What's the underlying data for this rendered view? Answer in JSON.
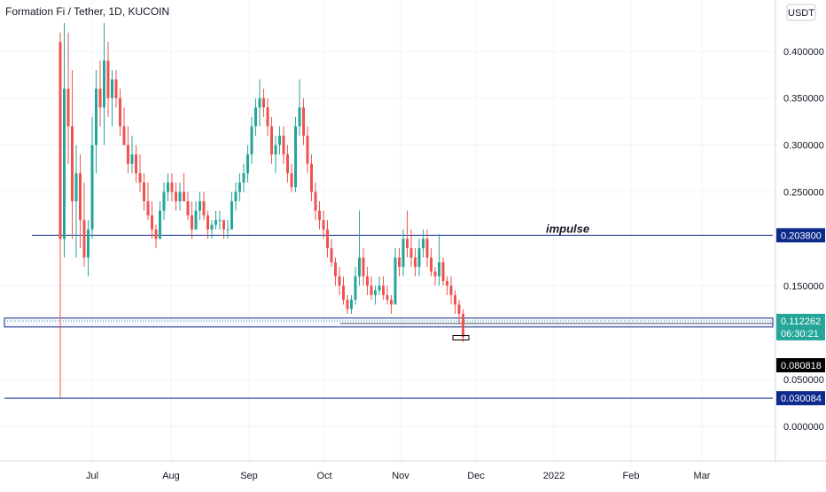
{
  "chart_data": {
    "type": "candlestick",
    "title": "Formation Fi / Tether, 1D, KUCOIN",
    "currency": "USDT",
    "colors": {
      "up": "#26a69a",
      "down": "#ef5350",
      "line": "#0d2a8c",
      "grid": "#f0f3fa"
    },
    "x_ticks": [
      "Jul",
      "Aug",
      "Sep",
      "Oct",
      "Nov",
      "Dec",
      "2022",
      "Feb",
      "Mar"
    ],
    "y_ticks": [
      "0.400000",
      "0.350000",
      "0.300000",
      "0.250000",
      "0.150000",
      "0.050000",
      "0.000000"
    ],
    "ylim": [
      -0.02,
      0.42
    ],
    "horizontal_levels": [
      {
        "price": 0.2038,
        "label": "0.203800",
        "color": "#0d2a8c",
        "annotation": "impulse"
      },
      {
        "price": 0.030084,
        "label": "0.030084",
        "color": "#0d2a8c"
      },
      {
        "price": 0.109778,
        "label": "0.109778",
        "color": "#000000"
      }
    ],
    "price_badges": [
      {
        "label": "0.112262",
        "sublabel": "06:30:21",
        "color": "#26a69a"
      },
      {
        "label": "0.080818",
        "color": "#000000"
      }
    ],
    "candles": [
      [
        0.41,
        0.42,
        0.03,
        0.2
      ],
      [
        0.2,
        0.43,
        0.18,
        0.36
      ],
      [
        0.36,
        0.42,
        0.28,
        0.32
      ],
      [
        0.32,
        0.38,
        0.2,
        0.24
      ],
      [
        0.24,
        0.3,
        0.18,
        0.27
      ],
      [
        0.27,
        0.29,
        0.19,
        0.22
      ],
      [
        0.22,
        0.26,
        0.17,
        0.18
      ],
      [
        0.18,
        0.22,
        0.16,
        0.21
      ],
      [
        0.21,
        0.33,
        0.2,
        0.3
      ],
      [
        0.3,
        0.38,
        0.27,
        0.36
      ],
      [
        0.36,
        0.39,
        0.32,
        0.34
      ],
      [
        0.34,
        0.43,
        0.3,
        0.39
      ],
      [
        0.39,
        0.41,
        0.33,
        0.35
      ],
      [
        0.35,
        0.38,
        0.32,
        0.37
      ],
      [
        0.37,
        0.38,
        0.34,
        0.35
      ],
      [
        0.35,
        0.36,
        0.31,
        0.32
      ],
      [
        0.32,
        0.34,
        0.3,
        0.3
      ],
      [
        0.3,
        0.32,
        0.27,
        0.28
      ],
      [
        0.28,
        0.31,
        0.27,
        0.29
      ],
      [
        0.29,
        0.3,
        0.26,
        0.27
      ],
      [
        0.27,
        0.29,
        0.25,
        0.26
      ],
      [
        0.26,
        0.27,
        0.23,
        0.24
      ],
      [
        0.24,
        0.26,
        0.22,
        0.225
      ],
      [
        0.225,
        0.24,
        0.2,
        0.21
      ],
      [
        0.21,
        0.215,
        0.19,
        0.2
      ],
      [
        0.2,
        0.24,
        0.2,
        0.23
      ],
      [
        0.23,
        0.26,
        0.22,
        0.25
      ],
      [
        0.25,
        0.27,
        0.24,
        0.26
      ],
      [
        0.26,
        0.27,
        0.24,
        0.25
      ],
      [
        0.25,
        0.26,
        0.23,
        0.24
      ],
      [
        0.24,
        0.26,
        0.23,
        0.25
      ],
      [
        0.25,
        0.27,
        0.24,
        0.24
      ],
      [
        0.24,
        0.25,
        0.22,
        0.225
      ],
      [
        0.225,
        0.24,
        0.2,
        0.21
      ],
      [
        0.21,
        0.24,
        0.21,
        0.23
      ],
      [
        0.23,
        0.25,
        0.22,
        0.24
      ],
      [
        0.24,
        0.25,
        0.22,
        0.225
      ],
      [
        0.225,
        0.23,
        0.2,
        0.21
      ],
      [
        0.21,
        0.22,
        0.2,
        0.215
      ],
      [
        0.215,
        0.23,
        0.21,
        0.22
      ],
      [
        0.22,
        0.23,
        0.21,
        0.22
      ],
      [
        0.22,
        0.22,
        0.2,
        0.21
      ],
      [
        0.21,
        0.22,
        0.2,
        0.21
      ],
      [
        0.21,
        0.25,
        0.21,
        0.24
      ],
      [
        0.24,
        0.26,
        0.23,
        0.25
      ],
      [
        0.25,
        0.27,
        0.24,
        0.26
      ],
      [
        0.26,
        0.28,
        0.25,
        0.27
      ],
      [
        0.27,
        0.3,
        0.26,
        0.29
      ],
      [
        0.29,
        0.33,
        0.28,
        0.32
      ],
      [
        0.32,
        0.35,
        0.31,
        0.34
      ],
      [
        0.34,
        0.37,
        0.32,
        0.35
      ],
      [
        0.35,
        0.36,
        0.33,
        0.34
      ],
      [
        0.34,
        0.35,
        0.31,
        0.32
      ],
      [
        0.32,
        0.33,
        0.28,
        0.29
      ],
      [
        0.29,
        0.31,
        0.27,
        0.3
      ],
      [
        0.3,
        0.32,
        0.29,
        0.31
      ],
      [
        0.31,
        0.32,
        0.28,
        0.29
      ],
      [
        0.29,
        0.3,
        0.26,
        0.27
      ],
      [
        0.27,
        0.28,
        0.25,
        0.255
      ],
      [
        0.255,
        0.33,
        0.25,
        0.32
      ],
      [
        0.32,
        0.37,
        0.31,
        0.34
      ],
      [
        0.34,
        0.35,
        0.3,
        0.31
      ],
      [
        0.31,
        0.32,
        0.27,
        0.28
      ],
      [
        0.28,
        0.29,
        0.24,
        0.25
      ],
      [
        0.25,
        0.26,
        0.22,
        0.23
      ],
      [
        0.23,
        0.24,
        0.21,
        0.22
      ],
      [
        0.22,
        0.23,
        0.2,
        0.21
      ],
      [
        0.21,
        0.22,
        0.18,
        0.19
      ],
      [
        0.19,
        0.2,
        0.17,
        0.175
      ],
      [
        0.175,
        0.18,
        0.15,
        0.16
      ],
      [
        0.16,
        0.17,
        0.14,
        0.15
      ],
      [
        0.15,
        0.16,
        0.13,
        0.135
      ],
      [
        0.135,
        0.14,
        0.12,
        0.125
      ],
      [
        0.125,
        0.14,
        0.12,
        0.135
      ],
      [
        0.135,
        0.17,
        0.13,
        0.16
      ],
      [
        0.16,
        0.23,
        0.15,
        0.18
      ],
      [
        0.18,
        0.19,
        0.15,
        0.16
      ],
      [
        0.16,
        0.17,
        0.14,
        0.15
      ],
      [
        0.15,
        0.16,
        0.135,
        0.14
      ],
      [
        0.14,
        0.15,
        0.13,
        0.145
      ],
      [
        0.145,
        0.16,
        0.14,
        0.15
      ],
      [
        0.15,
        0.16,
        0.135,
        0.14
      ],
      [
        0.14,
        0.15,
        0.13,
        0.135
      ],
      [
        0.135,
        0.14,
        0.12,
        0.13
      ],
      [
        0.13,
        0.19,
        0.13,
        0.18
      ],
      [
        0.18,
        0.19,
        0.16,
        0.17
      ],
      [
        0.17,
        0.21,
        0.16,
        0.2
      ],
      [
        0.2,
        0.23,
        0.18,
        0.19
      ],
      [
        0.19,
        0.21,
        0.17,
        0.18
      ],
      [
        0.18,
        0.19,
        0.16,
        0.17
      ],
      [
        0.17,
        0.2,
        0.16,
        0.19
      ],
      [
        0.19,
        0.21,
        0.18,
        0.2
      ],
      [
        0.2,
        0.21,
        0.17,
        0.18
      ],
      [
        0.18,
        0.19,
        0.16,
        0.165
      ],
      [
        0.165,
        0.17,
        0.15,
        0.16
      ],
      [
        0.16,
        0.205,
        0.15,
        0.175
      ],
      [
        0.175,
        0.18,
        0.15,
        0.155
      ],
      [
        0.155,
        0.16,
        0.14,
        0.15
      ],
      [
        0.15,
        0.16,
        0.13,
        0.14
      ],
      [
        0.14,
        0.145,
        0.12,
        0.13
      ],
      [
        0.13,
        0.135,
        0.11,
        0.12
      ],
      [
        0.12,
        0.125,
        0.09,
        0.095
      ]
    ]
  }
}
